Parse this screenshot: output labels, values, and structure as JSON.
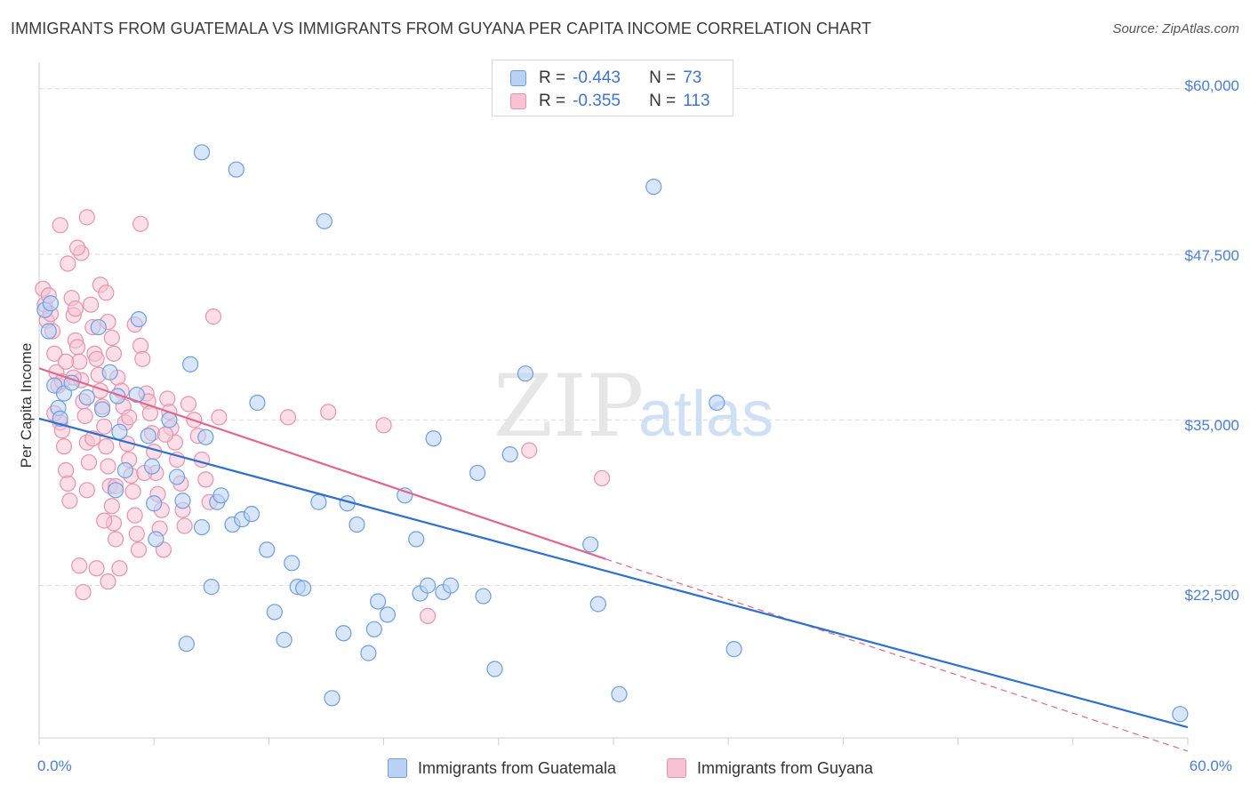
{
  "title": "IMMIGRANTS FROM GUATEMALA VS IMMIGRANTS FROM GUYANA PER CAPITA INCOME CORRELATION CHART",
  "source": "Source: ZipAtlas.com",
  "watermark": {
    "zip": "ZIP",
    "atlas": "atlas"
  },
  "stats": {
    "row1": {
      "r_label": "R =",
      "r_value": "-0.443",
      "n_label": "N =",
      "n_value": "73"
    },
    "row2": {
      "r_label": "R =",
      "r_value": "-0.355",
      "n_label": "N =",
      "n_value": "113"
    }
  },
  "colors": {
    "guatemala_fill": "#b9d2f5",
    "guatemala_stroke": "#6c9fe0",
    "guatemala_line": "#2f6fce",
    "guyana_fill": "#f7c3d3",
    "guyana_stroke": "#e893ad",
    "guyana_line": "#e0688f",
    "tick_label": "#4a7fd4",
    "grid": "#d9d9d9"
  },
  "chart_data": {
    "type": "scatter",
    "title": "IMMIGRANTS FROM GUATEMALA VS IMMIGRANTS FROM GUYANA PER CAPITA INCOME CORRELATION CHART",
    "xlabel": "",
    "ylabel": "Per Capita Income",
    "xlim": [
      0,
      60
    ],
    "ylim": [
      11000,
      62000
    ],
    "x_tick_labels": [
      "0.0%",
      "60.0%"
    ],
    "y_ticks": [
      22500,
      35000,
      47500,
      60000
    ],
    "y_tick_labels": [
      "$22,500",
      "$35,000",
      "$47,500",
      "$60,000"
    ],
    "grid": true,
    "legend_position": "bottom-center",
    "series": [
      {
        "name": "Immigrants from Guatemala",
        "r": -0.443,
        "n": 73,
        "trend": {
          "x": [
            0,
            60
          ],
          "y": [
            35100,
            11800
          ]
        },
        "points": [
          [
            0.3,
            43300
          ],
          [
            0.5,
            41700
          ],
          [
            0.6,
            43800
          ],
          [
            0.8,
            37600
          ],
          [
            1.0,
            35900
          ],
          [
            1.1,
            35100
          ],
          [
            1.3,
            37000
          ],
          [
            1.7,
            37800
          ],
          [
            2.5,
            36700
          ],
          [
            3.1,
            42000
          ],
          [
            3.7,
            38600
          ],
          [
            3.3,
            35800
          ],
          [
            4.2,
            34100
          ],
          [
            4.5,
            31200
          ],
          [
            4.0,
            29700
          ],
          [
            5.1,
            36900
          ],
          [
            5.2,
            42600
          ],
          [
            5.7,
            33800
          ],
          [
            5.9,
            31500
          ],
          [
            6.0,
            28700
          ],
          [
            6.1,
            26000
          ],
          [
            6.8,
            35000
          ],
          [
            7.2,
            30700
          ],
          [
            7.5,
            28900
          ],
          [
            7.7,
            18100
          ],
          [
            7.9,
            39200
          ],
          [
            8.5,
            26900
          ],
          [
            8.7,
            33700
          ],
          [
            9.0,
            22400
          ],
          [
            9.3,
            28800
          ],
          [
            9.5,
            29300
          ],
          [
            10.1,
            27100
          ],
          [
            10.6,
            27500
          ],
          [
            11.1,
            27900
          ],
          [
            11.4,
            36300
          ],
          [
            11.9,
            25200
          ],
          [
            12.3,
            20500
          ],
          [
            12.8,
            18400
          ],
          [
            13.2,
            24200
          ],
          [
            13.5,
            22400
          ],
          [
            13.8,
            22300
          ],
          [
            14.6,
            28800
          ],
          [
            15.3,
            14000
          ],
          [
            15.9,
            18900
          ],
          [
            16.1,
            28700
          ],
          [
            16.6,
            27100
          ],
          [
            17.2,
            17400
          ],
          [
            17.5,
            19200
          ],
          [
            17.7,
            21300
          ],
          [
            18.2,
            20300
          ],
          [
            19.1,
            29300
          ],
          [
            19.7,
            26000
          ],
          [
            19.9,
            21900
          ],
          [
            20.3,
            22500
          ],
          [
            20.6,
            33600
          ],
          [
            21.1,
            22000
          ],
          [
            21.5,
            22500
          ],
          [
            22.9,
            31000
          ],
          [
            23.2,
            21700
          ],
          [
            23.8,
            16200
          ],
          [
            24.6,
            32400
          ],
          [
            25.4,
            38500
          ],
          [
            28.8,
            25600
          ],
          [
            29.2,
            21100
          ],
          [
            30.3,
            14300
          ],
          [
            32.1,
            52600
          ],
          [
            35.4,
            36300
          ],
          [
            36.3,
            17700
          ],
          [
            59.6,
            12800
          ],
          [
            8.5,
            55200
          ],
          [
            10.3,
            53900
          ],
          [
            14.9,
            50000
          ],
          [
            4.1,
            36800
          ]
        ]
      },
      {
        "name": "Immigrants from Guyana",
        "r": -0.355,
        "n": 113,
        "trend": {
          "x": [
            0,
            29.6
          ],
          "y": [
            38900,
            24500
          ]
        },
        "trend_dashed": {
          "x": [
            29.6,
            60
          ],
          "y": [
            24500,
            10000
          ]
        },
        "points": [
          [
            0.2,
            44900
          ],
          [
            0.3,
            43700
          ],
          [
            0.4,
            42500
          ],
          [
            0.5,
            44400
          ],
          [
            0.6,
            43000
          ],
          [
            0.7,
            41700
          ],
          [
            0.8,
            40000
          ],
          [
            0.9,
            38600
          ],
          [
            1.0,
            37600
          ],
          [
            1.1,
            34800
          ],
          [
            1.2,
            34200
          ],
          [
            1.3,
            33000
          ],
          [
            1.4,
            31200
          ],
          [
            1.5,
            30200
          ],
          [
            1.6,
            28900
          ],
          [
            1.1,
            49700
          ],
          [
            1.5,
            46800
          ],
          [
            1.7,
            44200
          ],
          [
            1.8,
            42900
          ],
          [
            1.9,
            41000
          ],
          [
            2.0,
            40500
          ],
          [
            2.1,
            39400
          ],
          [
            2.2,
            38000
          ],
          [
            2.3,
            36400
          ],
          [
            2.4,
            35300
          ],
          [
            2.5,
            33300
          ],
          [
            2.6,
            31800
          ],
          [
            2.2,
            47600
          ],
          [
            2.0,
            48000
          ],
          [
            2.1,
            24000
          ],
          [
            2.3,
            22000
          ],
          [
            2.7,
            43700
          ],
          [
            2.8,
            42000
          ],
          [
            2.9,
            40000
          ],
          [
            3.0,
            39600
          ],
          [
            3.1,
            38400
          ],
          [
            3.2,
            37200
          ],
          [
            3.3,
            36000
          ],
          [
            3.4,
            34500
          ],
          [
            3.5,
            33000
          ],
          [
            3.6,
            31500
          ],
          [
            3.7,
            30000
          ],
          [
            3.8,
            28500
          ],
          [
            3.9,
            27200
          ],
          [
            4.0,
            26000
          ],
          [
            2.5,
            50300
          ],
          [
            3.2,
            45200
          ],
          [
            3.5,
            44600
          ],
          [
            3.6,
            42400
          ],
          [
            3.8,
            41200
          ],
          [
            3.9,
            40000
          ],
          [
            4.1,
            38200
          ],
          [
            4.3,
            37200
          ],
          [
            4.4,
            36000
          ],
          [
            4.5,
            34800
          ],
          [
            4.6,
            33200
          ],
          [
            4.7,
            32000
          ],
          [
            4.8,
            30800
          ],
          [
            4.9,
            29600
          ],
          [
            5.0,
            27800
          ],
          [
            5.1,
            26400
          ],
          [
            5.2,
            25200
          ],
          [
            5.3,
            40600
          ],
          [
            5.4,
            39600
          ],
          [
            5.6,
            37000
          ],
          [
            5.7,
            36400
          ],
          [
            5.8,
            35500
          ],
          [
            5.9,
            34000
          ],
          [
            6.0,
            32600
          ],
          [
            6.1,
            31000
          ],
          [
            6.2,
            29400
          ],
          [
            6.4,
            28200
          ],
          [
            6.5,
            25200
          ],
          [
            5.3,
            49800
          ],
          [
            5.0,
            42200
          ],
          [
            6.7,
            36600
          ],
          [
            6.8,
            35600
          ],
          [
            6.9,
            34400
          ],
          [
            7.1,
            33300
          ],
          [
            7.2,
            32000
          ],
          [
            7.4,
            30200
          ],
          [
            7.5,
            28200
          ],
          [
            7.6,
            27000
          ],
          [
            7.8,
            36200
          ],
          [
            8.1,
            35000
          ],
          [
            8.3,
            33800
          ],
          [
            8.5,
            32000
          ],
          [
            8.7,
            30500
          ],
          [
            8.9,
            28800
          ],
          [
            9.1,
            42800
          ],
          [
            9.4,
            35200
          ],
          [
            13.0,
            35200
          ],
          [
            15.1,
            35600
          ],
          [
            18.0,
            34600
          ],
          [
            20.3,
            20200
          ],
          [
            25.6,
            32700
          ],
          [
            29.4,
            30600
          ],
          [
            0.8,
            35500
          ],
          [
            1.2,
            37900
          ],
          [
            1.9,
            43400
          ],
          [
            2.5,
            29700
          ],
          [
            3.0,
            23800
          ],
          [
            3.6,
            22800
          ],
          [
            4.2,
            23800
          ],
          [
            4.7,
            35200
          ],
          [
            5.5,
            31000
          ],
          [
            6.3,
            26800
          ],
          [
            2.8,
            33600
          ],
          [
            3.4,
            27400
          ],
          [
            4.0,
            30000
          ],
          [
            1.4,
            39400
          ],
          [
            1.8,
            38200
          ],
          [
            6.6,
            33900
          ]
        ]
      }
    ]
  },
  "labels": {
    "ylabel": "Per Capita Income",
    "xmin": "0.0%",
    "xmax": "60.0%",
    "yticks": [
      "$60,000",
      "$47,500",
      "$35,000",
      "$22,500"
    ],
    "legend": [
      "Immigrants from Guatemala",
      "Immigrants from Guyana"
    ]
  }
}
